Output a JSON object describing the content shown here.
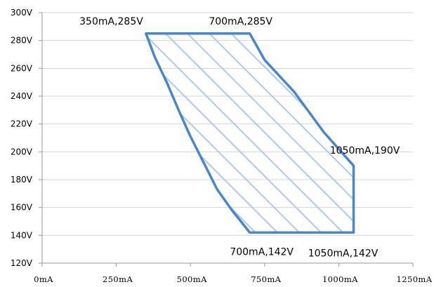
{
  "chart_data": {
    "type": "area",
    "title": "",
    "xlabel": "",
    "ylabel": "",
    "xlim": [
      0,
      1250
    ],
    "ylim": [
      120,
      300
    ],
    "x_ticks": [
      0,
      250,
      500,
      750,
      1000,
      1250
    ],
    "x_tick_labels": [
      "0mA",
      "250mA",
      "500mA",
      "750mA",
      "1000mA",
      "1250mA"
    ],
    "y_ticks": [
      120,
      140,
      160,
      180,
      200,
      220,
      240,
      260,
      280,
      300
    ],
    "y_tick_labels": [
      "120V",
      "140V",
      "160V",
      "180V",
      "200V",
      "220V",
      "240V",
      "260V",
      "280V",
      "300V"
    ],
    "grid": "horizontal",
    "series": [
      {
        "points": [
          {
            "x": 350,
            "y": 285
          },
          {
            "x": 700,
            "y": 285
          },
          {
            "x": 750,
            "y": 266
          },
          {
            "x": 850,
            "y": 243
          },
          {
            "x": 950,
            "y": 214
          },
          {
            "x": 1050,
            "y": 190
          },
          {
            "x": 1050,
            "y": 142
          },
          {
            "x": 700,
            "y": 142
          },
          {
            "x": 640,
            "y": 158
          },
          {
            "x": 590,
            "y": 173
          },
          {
            "x": 550,
            "y": 190
          },
          {
            "x": 500,
            "y": 211
          },
          {
            "x": 460,
            "y": 230
          },
          {
            "x": 420,
            "y": 250
          },
          {
            "x": 380,
            "y": 268
          }
        ]
      }
    ],
    "annotations": [
      {
        "text": "350mA,285V",
        "x": 350,
        "y": 285,
        "anchor": "end"
      },
      {
        "text": "700mA,285V",
        "x": 700,
        "y": 285,
        "anchor": "middle"
      },
      {
        "text": "1050mA,190V",
        "x": 1050,
        "y": 190,
        "anchor": "middle"
      },
      {
        "text": "700mA,142V",
        "x": 700,
        "y": 142,
        "anchor": "middle"
      },
      {
        "text": "1050mA,142V",
        "x": 1050,
        "y": 142,
        "anchor": "middle"
      }
    ],
    "colors": {
      "outline": "#4a86c8",
      "hatch": "#adc9ee",
      "grid": "#d4d4d4",
      "axis": "#999999"
    }
  }
}
